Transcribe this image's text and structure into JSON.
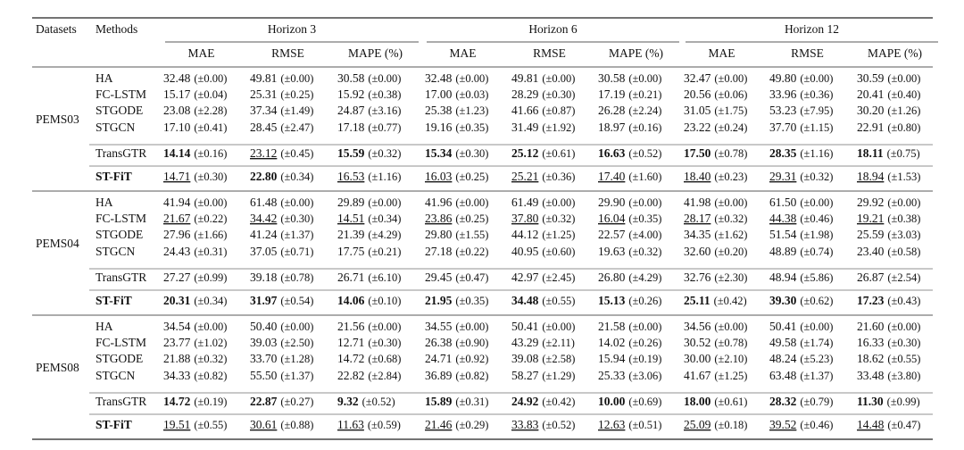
{
  "header": {
    "datasets": "Datasets",
    "methods": "Methods",
    "horizons": [
      "Horizon 3",
      "Horizon 6",
      "Horizon 12"
    ],
    "metrics": [
      "MAE",
      "RMSE",
      "MAPE (%)",
      "MAE",
      "RMSE",
      "MAPE (%)",
      "MAE",
      "RMSE",
      "MAPE (%)"
    ]
  },
  "groups": [
    {
      "dataset": "PEMS03",
      "rows": [
        {
          "method": "HA",
          "cells": [
            [
              "32.48",
              "(±0.00)"
            ],
            [
              "49.81",
              "(±0.00)"
            ],
            [
              "30.58",
              "(±0.00)"
            ],
            [
              "32.48",
              "(±0.00)"
            ],
            [
              "49.81",
              "(±0.00)"
            ],
            [
              "30.58",
              "(±0.00)"
            ],
            [
              "32.47",
              "(±0.00)"
            ],
            [
              "49.80",
              "(±0.00)"
            ],
            [
              "30.59",
              "(±0.00)"
            ]
          ]
        },
        {
          "method": "FC-LSTM",
          "cells": [
            [
              "15.17",
              "(±0.04)"
            ],
            [
              "25.31",
              "(±0.25)"
            ],
            [
              "15.92",
              "(±0.38)"
            ],
            [
              "17.00",
              "(±0.03)"
            ],
            [
              "28.29",
              "(±0.30)"
            ],
            [
              "17.19",
              "(±0.21)"
            ],
            [
              "20.56",
              "(±0.06)"
            ],
            [
              "33.96",
              "(±0.36)"
            ],
            [
              "20.41",
              "(±0.40)"
            ]
          ]
        },
        {
          "method": "STGODE",
          "cells": [
            [
              "23.08",
              "(±2.28)"
            ],
            [
              "37.34",
              "(±1.49)"
            ],
            [
              "24.87",
              "(±3.16)"
            ],
            [
              "25.38",
              "(±1.23)"
            ],
            [
              "41.66",
              "(±0.87)"
            ],
            [
              "26.28",
              "(±2.24)"
            ],
            [
              "31.05",
              "(±1.75)"
            ],
            [
              "53.23",
              "(±7.95)"
            ],
            [
              "30.20",
              "(±1.26)"
            ]
          ]
        },
        {
          "method": "STGCN",
          "cells": [
            [
              "17.10",
              "(±0.41)"
            ],
            [
              "28.45",
              "(±2.47)"
            ],
            [
              "17.18",
              "(±0.77)"
            ],
            [
              "19.16",
              "(±0.35)"
            ],
            [
              "31.49",
              "(±1.92)"
            ],
            [
              "18.97",
              "(±0.16)"
            ],
            [
              "23.22",
              "(±0.24)"
            ],
            [
              "37.70",
              "(±1.15)"
            ],
            [
              "22.91",
              "(±0.80)"
            ]
          ]
        },
        {
          "method": "TransGTR",
          "cells": [
            [
              "14.14",
              "(±0.16)"
            ],
            [
              "23.12",
              "(±0.45)"
            ],
            [
              "15.59",
              "(±0.32)"
            ],
            [
              "15.34",
              "(±0.30)"
            ],
            [
              "25.12",
              "(±0.61)"
            ],
            [
              "16.63",
              "(±0.52)"
            ],
            [
              "17.50",
              "(±0.78)"
            ],
            [
              "28.35",
              "(±1.16)"
            ],
            [
              "18.11",
              "(±0.75)"
            ]
          ],
          "bold": [
            0,
            2,
            3,
            4,
            5,
            6,
            7,
            8
          ],
          "underline": [
            1
          ]
        },
        {
          "method": "ST-FiT",
          "method_bold": true,
          "cells": [
            [
              "14.71",
              "(±0.30)"
            ],
            [
              "22.80",
              "(±0.34)"
            ],
            [
              "16.53",
              "(±1.16)"
            ],
            [
              "16.03",
              "(±0.25)"
            ],
            [
              "25.21",
              "(±0.36)"
            ],
            [
              "17.40",
              "(±1.60)"
            ],
            [
              "18.40",
              "(±0.23)"
            ],
            [
              "29.31",
              "(±0.32)"
            ],
            [
              "18.94",
              "(±1.53)"
            ]
          ],
          "bold": [
            1
          ],
          "underline": [
            0,
            2,
            3,
            4,
            5,
            6,
            7,
            8
          ]
        }
      ]
    },
    {
      "dataset": "PEMS04",
      "rows": [
        {
          "method": "HA",
          "cells": [
            [
              "41.94",
              "(±0.00)"
            ],
            [
              "61.48",
              "(±0.00)"
            ],
            [
              "29.89",
              "(±0.00)"
            ],
            [
              "41.96",
              "(±0.00)"
            ],
            [
              "61.49",
              "(±0.00)"
            ],
            [
              "29.90",
              "(±0.00)"
            ],
            [
              "41.98",
              "(±0.00)"
            ],
            [
              "61.50",
              "(±0.00)"
            ],
            [
              "29.92",
              "(±0.00)"
            ]
          ]
        },
        {
          "method": "FC-LSTM",
          "cells": [
            [
              "21.67",
              "(±0.22)"
            ],
            [
              "34.42",
              "(±0.30)"
            ],
            [
              "14.51",
              "(±0.34)"
            ],
            [
              "23.86",
              "(±0.25)"
            ],
            [
              "37.80",
              "(±0.32)"
            ],
            [
              "16.04",
              "(±0.35)"
            ],
            [
              "28.17",
              "(±0.32)"
            ],
            [
              "44.38",
              "(±0.46)"
            ],
            [
              "19.21",
              "(±0.38)"
            ]
          ],
          "underline": [
            0,
            1,
            2,
            3,
            4,
            5,
            6,
            7,
            8
          ]
        },
        {
          "method": "STGODE",
          "cells": [
            [
              "27.96",
              "(±1.66)"
            ],
            [
              "41.24",
              "(±1.37)"
            ],
            [
              "21.39",
              "(±4.29)"
            ],
            [
              "29.80",
              "(±1.55)"
            ],
            [
              "44.12",
              "(±1.25)"
            ],
            [
              "22.57",
              "(±4.00)"
            ],
            [
              "34.35",
              "(±1.62)"
            ],
            [
              "51.54",
              "(±1.98)"
            ],
            [
              "25.59",
              "(±3.03)"
            ]
          ]
        },
        {
          "method": "STGCN",
          "cells": [
            [
              "24.43",
              "(±0.31)"
            ],
            [
              "37.05",
              "(±0.71)"
            ],
            [
              "17.75",
              "(±0.21)"
            ],
            [
              "27.18",
              "(±0.22)"
            ],
            [
              "40.95",
              "(±0.60)"
            ],
            [
              "19.63",
              "(±0.32)"
            ],
            [
              "32.60",
              "(±0.20)"
            ],
            [
              "48.89",
              "(±0.74)"
            ],
            [
              "23.40",
              "(±0.58)"
            ]
          ]
        },
        {
          "method": "TransGTR",
          "cells": [
            [
              "27.27",
              "(±0.99)"
            ],
            [
              "39.18",
              "(±0.78)"
            ],
            [
              "26.71",
              "(±6.10)"
            ],
            [
              "29.45",
              "(±0.47)"
            ],
            [
              "42.97",
              "(±2.45)"
            ],
            [
              "26.80",
              "(±4.29)"
            ],
            [
              "32.76",
              "(±2.30)"
            ],
            [
              "48.94",
              "(±5.86)"
            ],
            [
              "26.87",
              "(±2.54)"
            ]
          ]
        },
        {
          "method": "ST-FiT",
          "method_bold": true,
          "cells": [
            [
              "20.31",
              "(±0.34)"
            ],
            [
              "31.97",
              "(±0.54)"
            ],
            [
              "14.06",
              "(±0.10)"
            ],
            [
              "21.95",
              "(±0.35)"
            ],
            [
              "34.48",
              "(±0.55)"
            ],
            [
              "15.13",
              "(±0.26)"
            ],
            [
              "25.11",
              "(±0.42)"
            ],
            [
              "39.30",
              "(±0.62)"
            ],
            [
              "17.23",
              "(±0.43)"
            ]
          ],
          "bold": [
            0,
            1,
            2,
            3,
            4,
            5,
            6,
            7,
            8
          ]
        }
      ]
    },
    {
      "dataset": "PEMS08",
      "rows": [
        {
          "method": "HA",
          "cells": [
            [
              "34.54",
              "(±0.00)"
            ],
            [
              "50.40",
              "(±0.00)"
            ],
            [
              "21.56",
              "(±0.00)"
            ],
            [
              "34.55",
              "(±0.00)"
            ],
            [
              "50.41",
              "(±0.00)"
            ],
            [
              "21.58",
              "(±0.00)"
            ],
            [
              "34.56",
              "(±0.00)"
            ],
            [
              "50.41",
              "(±0.00)"
            ],
            [
              "21.60",
              "(±0.00)"
            ]
          ]
        },
        {
          "method": "FC-LSTM",
          "cells": [
            [
              "23.77",
              "(±1.02)"
            ],
            [
              "39.03",
              "(±2.50)"
            ],
            [
              "12.71",
              "(±0.30)"
            ],
            [
              "26.38",
              "(±0.90)"
            ],
            [
              "43.29",
              "(±2.11)"
            ],
            [
              "14.02",
              "(±0.26)"
            ],
            [
              "30.52",
              "(±0.78)"
            ],
            [
              "49.58",
              "(±1.74)"
            ],
            [
              "16.33",
              "(±0.30)"
            ]
          ]
        },
        {
          "method": "STGODE",
          "cells": [
            [
              "21.88",
              "(±0.32)"
            ],
            [
              "33.70",
              "(±1.28)"
            ],
            [
              "14.72",
              "(±0.68)"
            ],
            [
              "24.71",
              "(±0.92)"
            ],
            [
              "39.08",
              "(±2.58)"
            ],
            [
              "15.94",
              "(±0.19)"
            ],
            [
              "30.00",
              "(±2.10)"
            ],
            [
              "48.24",
              "(±5.23)"
            ],
            [
              "18.62",
              "(±0.55)"
            ]
          ]
        },
        {
          "method": "STGCN",
          "cells": [
            [
              "34.33",
              "(±0.82)"
            ],
            [
              "55.50",
              "(±1.37)"
            ],
            [
              "22.82",
              "(±2.84)"
            ],
            [
              "36.89",
              "(±0.82)"
            ],
            [
              "58.27",
              "(±1.29)"
            ],
            [
              "25.33",
              "(±3.06)"
            ],
            [
              "41.67",
              "(±1.25)"
            ],
            [
              "63.48",
              "(±1.37)"
            ],
            [
              "33.48",
              "(±3.80)"
            ]
          ]
        },
        {
          "method": "TransGTR",
          "cells": [
            [
              "14.72",
              "(±0.19)"
            ],
            [
              "22.87",
              "(±0.27)"
            ],
            [
              "9.32",
              "(±0.52)"
            ],
            [
              "15.89",
              "(±0.31)"
            ],
            [
              "24.92",
              "(±0.42)"
            ],
            [
              "10.00",
              "(±0.69)"
            ],
            [
              "18.00",
              "(±0.61)"
            ],
            [
              "28.32",
              "(±0.79)"
            ],
            [
              "11.30",
              "(±0.99)"
            ]
          ],
          "bold": [
            0,
            1,
            2,
            3,
            4,
            5,
            6,
            7,
            8
          ]
        },
        {
          "method": "ST-FiT",
          "method_bold": true,
          "cells": [
            [
              "19.51",
              "(±0.55)"
            ],
            [
              "30.61",
              "(±0.88)"
            ],
            [
              "11.63",
              "(±0.59)"
            ],
            [
              "21.46",
              "(±0.29)"
            ],
            [
              "33.83",
              "(±0.52)"
            ],
            [
              "12.63",
              "(±0.51)"
            ],
            [
              "25.09",
              "(±0.18)"
            ],
            [
              "39.52",
              "(±0.46)"
            ],
            [
              "14.48",
              "(±0.47)"
            ]
          ],
          "underline": [
            0,
            1,
            2,
            3,
            4,
            5,
            6,
            7,
            8
          ]
        }
      ]
    }
  ]
}
